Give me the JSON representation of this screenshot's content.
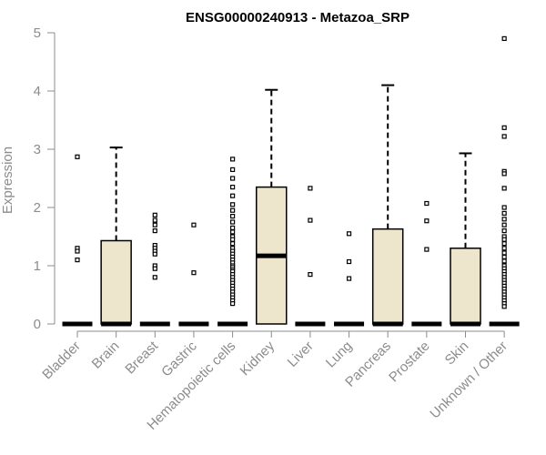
{
  "chart_data": {
    "type": "box",
    "title": "ENSG00000240913 - Metazoa_SRP",
    "ylabel": "Expression",
    "xlabel": "",
    "ylim": [
      0,
      5
    ],
    "yticks": [
      0,
      1,
      2,
      3,
      4,
      5
    ],
    "box_fill": "#ede6cc",
    "categories": [
      "Bladder",
      "Brain",
      "Breast",
      "Gastric",
      "Hematopoietic cells",
      "Kidney",
      "Liver",
      "Lung",
      "Pancreas",
      "Prostate",
      "Skin",
      "Unknown / Other"
    ],
    "boxes": [
      {
        "q1": 0,
        "median": 0,
        "q3": 0,
        "whisker_low": 0,
        "whisker_high": 0,
        "outliers": [
          2.87,
          1.3,
          1.25,
          1.1
        ]
      },
      {
        "q1": 0,
        "median": 0,
        "q3": 1.43,
        "whisker_low": 0,
        "whisker_high": 3.03,
        "outliers": []
      },
      {
        "q1": 0,
        "median": 0,
        "q3": 0,
        "whisker_low": 0,
        "whisker_high": 0,
        "outliers": [
          1.87,
          1.78,
          1.7,
          1.6,
          1.35,
          1.3,
          1.25,
          1.2,
          1.0,
          0.95,
          0.8
        ]
      },
      {
        "q1": 0,
        "median": 0,
        "q3": 0,
        "whisker_low": 0,
        "whisker_high": 0,
        "outliers": [
          1.7,
          0.88
        ]
      },
      {
        "q1": 0,
        "median": 0,
        "q3": 0,
        "whisker_low": 0,
        "whisker_high": 0,
        "outliers": [
          2.83,
          2.65,
          2.5,
          2.35,
          2.2,
          2.05,
          1.95,
          1.85,
          1.75,
          1.65,
          1.58,
          1.5,
          1.45,
          1.38,
          1.3,
          1.25,
          1.2,
          1.15,
          1.1,
          1.05,
          1.0,
          0.97,
          0.93,
          0.9,
          0.85,
          0.8,
          0.75,
          0.7,
          0.65,
          0.6,
          0.55,
          0.5,
          0.45,
          0.4,
          0.35
        ]
      },
      {
        "q1": 0,
        "median": 1.17,
        "q3": 2.35,
        "whisker_low": 0,
        "whisker_high": 4.02,
        "outliers": []
      },
      {
        "q1": 0,
        "median": 0,
        "q3": 0,
        "whisker_low": 0,
        "whisker_high": 0,
        "outliers": [
          2.33,
          1.78,
          0.85
        ]
      },
      {
        "q1": 0,
        "median": 0,
        "q3": 0,
        "whisker_low": 0,
        "whisker_high": 0,
        "outliers": [
          1.55,
          1.07,
          0.78
        ]
      },
      {
        "q1": 0,
        "median": 0,
        "q3": 1.63,
        "whisker_low": 0,
        "whisker_high": 4.1,
        "outliers": []
      },
      {
        "q1": 0,
        "median": 0,
        "q3": 0,
        "whisker_low": 0,
        "whisker_high": 0,
        "outliers": [
          2.07,
          1.77,
          1.28
        ]
      },
      {
        "q1": 0,
        "median": 0,
        "q3": 1.3,
        "whisker_low": 0,
        "whisker_high": 2.93,
        "outliers": []
      },
      {
        "q1": 0,
        "median": 0,
        "q3": 0,
        "whisker_low": 0,
        "whisker_high": 0,
        "outliers": [
          4.9,
          3.37,
          3.22,
          2.62,
          2.58,
          2.33,
          2.0,
          1.9,
          1.8,
          1.7,
          1.6,
          1.5,
          1.45,
          1.38,
          1.3,
          1.22,
          1.15,
          1.08,
          1.0,
          0.95,
          0.9,
          0.85,
          0.8,
          0.75,
          0.7,
          0.65,
          0.6,
          0.55,
          0.5,
          0.45,
          0.4,
          0.35,
          0.3
        ]
      }
    ]
  }
}
